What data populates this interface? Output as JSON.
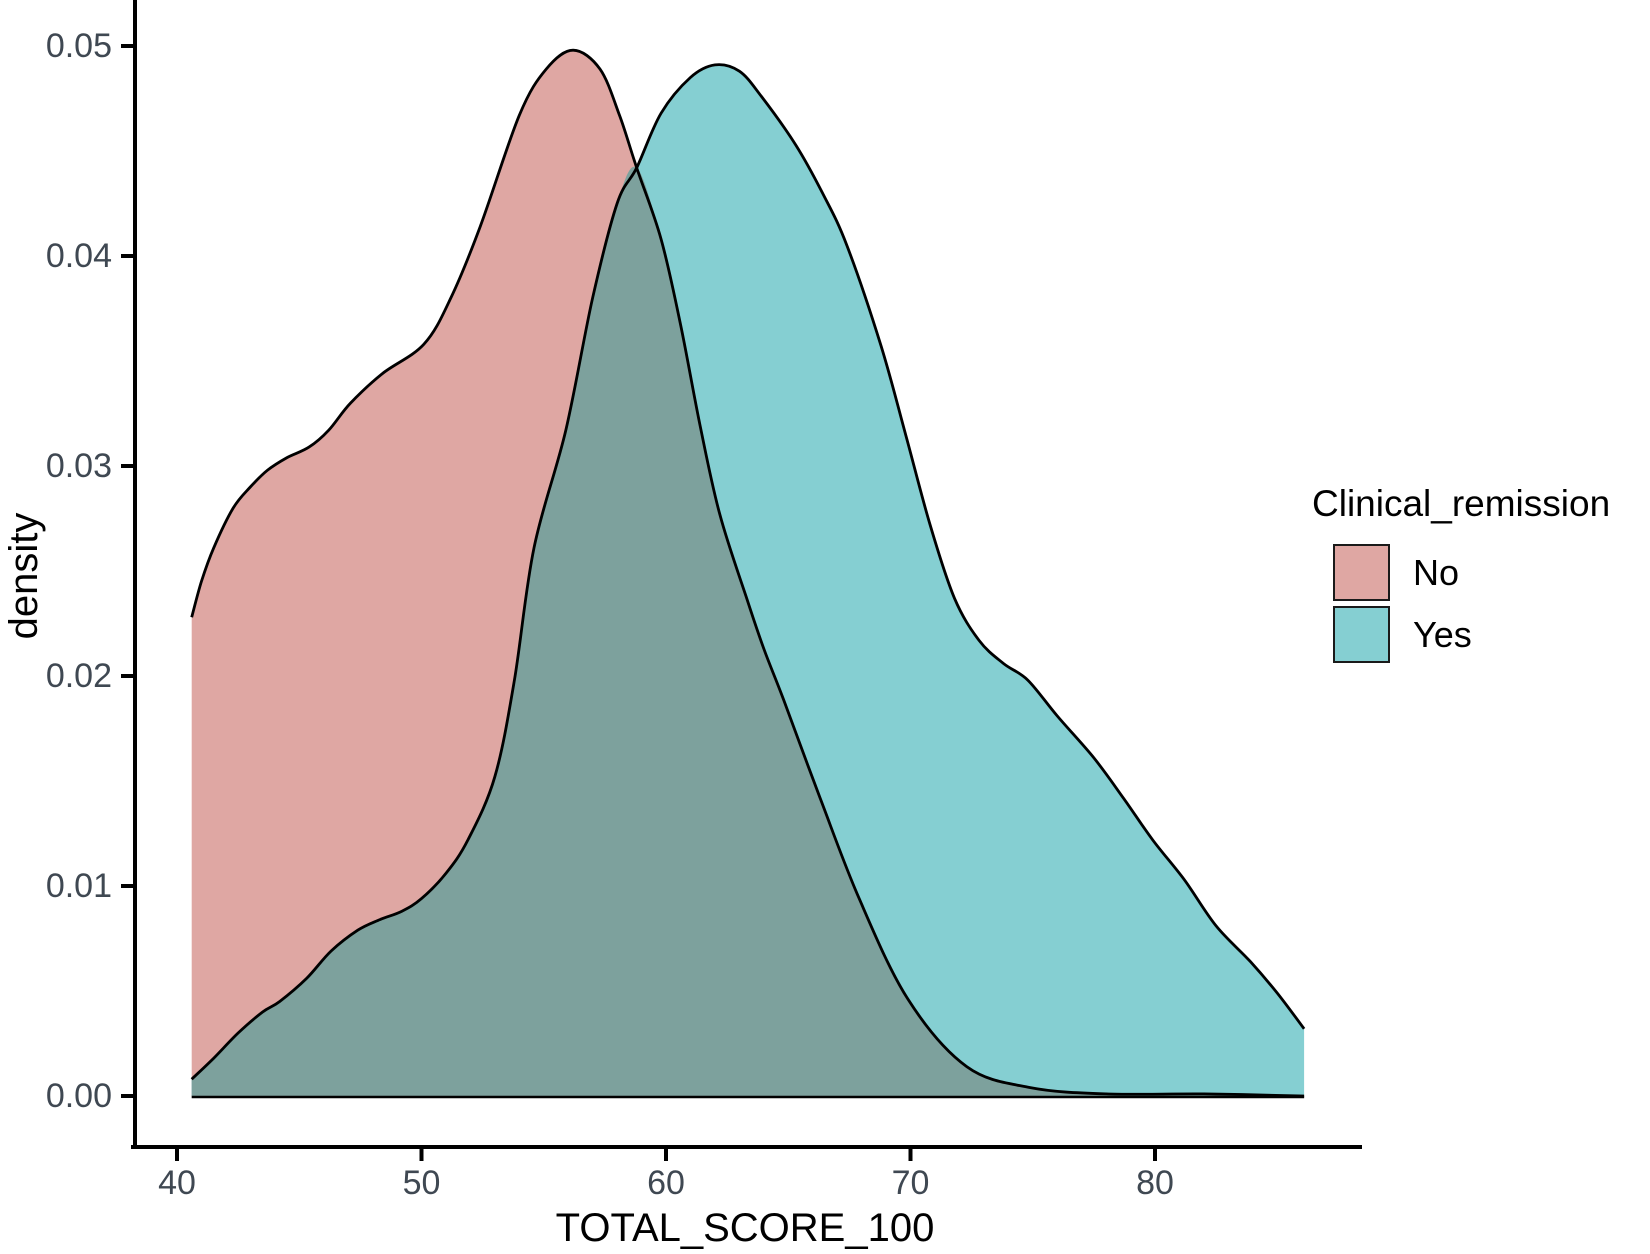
{
  "chart_data": {
    "type": "area",
    "subtype": "density",
    "title": "",
    "xlabel": "TOTAL_SCORE_100",
    "ylabel": "density",
    "xlim": [
      38.4,
      88.5
    ],
    "ylim": [
      0,
      0.0522
    ],
    "grid": false,
    "legend_position": "right",
    "legend_title": "Clinical_remission",
    "x_ticks": [
      {
        "value": 40,
        "label": "40"
      },
      {
        "value": 50,
        "label": "50"
      },
      {
        "value": 60,
        "label": "60"
      },
      {
        "value": 70,
        "label": "70"
      },
      {
        "value": 80,
        "label": "80"
      }
    ],
    "y_ticks": [
      {
        "value": 0.0,
        "label": "0.00"
      },
      {
        "value": 0.01,
        "label": "0.01"
      },
      {
        "value": 0.02,
        "label": "0.02"
      },
      {
        "value": 0.03,
        "label": "0.03"
      },
      {
        "value": 0.04,
        "label": "0.04"
      },
      {
        "value": 0.05,
        "label": "0.05"
      }
    ],
    "crossing_x": 58.8,
    "overlap_color": "#7DA19D",
    "outline_color": "#000000",
    "series": [
      {
        "name": "No",
        "color": "#DFA7A3",
        "peak": {
          "x": 56.2,
          "density": 0.0498
        },
        "points": [
          [
            40.6,
            0.0228
          ],
          [
            41.0,
            0.0245
          ],
          [
            41.5,
            0.0261
          ],
          [
            42.3,
            0.028
          ],
          [
            43.0,
            0.029
          ],
          [
            43.7,
            0.0298
          ],
          [
            44.5,
            0.0304
          ],
          [
            45.4,
            0.0309
          ],
          [
            46.2,
            0.0317
          ],
          [
            47.1,
            0.033
          ],
          [
            48.4,
            0.0344
          ],
          [
            50.1,
            0.0358
          ],
          [
            51.2,
            0.038
          ],
          [
            52.4,
            0.0414
          ],
          [
            54.0,
            0.0467
          ],
          [
            55.1,
            0.0489
          ],
          [
            56.2,
            0.0498
          ],
          [
            57.3,
            0.0489
          ],
          [
            58.1,
            0.0467
          ],
          [
            58.8,
            0.0442
          ],
          [
            59.8,
            0.0408
          ],
          [
            60.6,
            0.0367
          ],
          [
            61.4,
            0.0319
          ],
          [
            62.2,
            0.0277
          ],
          [
            63.3,
            0.0237
          ],
          [
            64.0,
            0.0213
          ],
          [
            64.8,
            0.0189
          ],
          [
            66.3,
            0.0142
          ],
          [
            67.9,
            0.0094
          ],
          [
            69.9,
            0.0046
          ],
          [
            72.3,
            0.0014
          ],
          [
            74.9,
            0.0004
          ],
          [
            78.0,
            0.0001
          ],
          [
            82.0,
            0.0001
          ],
          [
            86.1,
            0.0
          ]
        ]
      },
      {
        "name": "Yes",
        "color": "#85CFD2",
        "peak": {
          "x": 62.0,
          "density": 0.0491
        },
        "points": [
          [
            40.6,
            0.0008
          ],
          [
            41.5,
            0.0018
          ],
          [
            42.5,
            0.003
          ],
          [
            43.5,
            0.004
          ],
          [
            44.2,
            0.0045
          ],
          [
            45.3,
            0.0056
          ],
          [
            46.3,
            0.0069
          ],
          [
            47.4,
            0.0079
          ],
          [
            48.3,
            0.0084
          ],
          [
            49.2,
            0.0088
          ],
          [
            50.0,
            0.0094
          ],
          [
            51.0,
            0.0106
          ],
          [
            51.9,
            0.0122
          ],
          [
            53.0,
            0.0152
          ],
          [
            53.8,
            0.0198
          ],
          [
            54.6,
            0.0261
          ],
          [
            55.9,
            0.0317
          ],
          [
            57.0,
            0.038
          ],
          [
            58.0,
            0.0425
          ],
          [
            58.8,
            0.0442
          ],
          [
            59.8,
            0.0468
          ],
          [
            61.0,
            0.0485
          ],
          [
            62.0,
            0.0491
          ],
          [
            63.0,
            0.0488
          ],
          [
            63.9,
            0.0476
          ],
          [
            65.3,
            0.0453
          ],
          [
            66.4,
            0.043
          ],
          [
            67.4,
            0.0405
          ],
          [
            68.8,
            0.0357
          ],
          [
            69.8,
            0.0315
          ],
          [
            70.8,
            0.0272
          ],
          [
            71.8,
            0.0237
          ],
          [
            72.8,
            0.0217
          ],
          [
            73.8,
            0.0206
          ],
          [
            74.8,
            0.0198
          ],
          [
            76.0,
            0.0181
          ],
          [
            77.5,
            0.0161
          ],
          [
            78.7,
            0.0142
          ],
          [
            79.9,
            0.0122
          ],
          [
            81.2,
            0.0103
          ],
          [
            82.5,
            0.0081
          ],
          [
            83.9,
            0.0064
          ],
          [
            85.0,
            0.0049
          ],
          [
            86.1,
            0.0032
          ]
        ]
      }
    ],
    "style": {
      "tick_label_color": "#3f4852",
      "axis_color": "#000000",
      "background": "#ffffff"
    }
  }
}
